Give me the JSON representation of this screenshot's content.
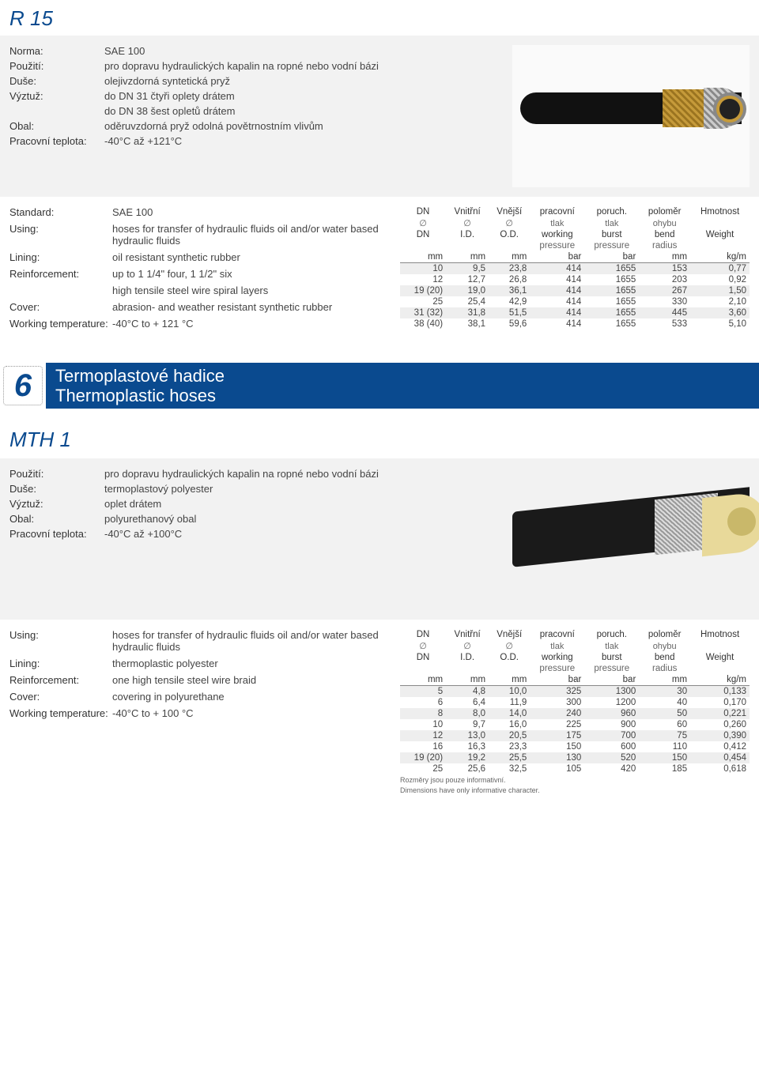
{
  "r15": {
    "title": "R 15",
    "spec_cz": [
      {
        "label": "Norma:",
        "value": "SAE 100"
      },
      {
        "label": "Použití:",
        "value": "pro dopravu hydraulických kapalin na ropné nebo vodní bázi"
      },
      {
        "label": "Duše:",
        "value": "olejivzdorná syntetická pryž"
      },
      {
        "label": "Výztuž:",
        "value": "do DN 31 čtyři oplety drátem"
      },
      {
        "label": "",
        "value": "do DN 38 šest opletů drátem"
      },
      {
        "label": "Obal:",
        "value": "oděruvzdorná pryž odolná povětrnostním vlivům"
      },
      {
        "label": "Pracovní teplota:",
        "value": "-40°C až +121°C"
      }
    ],
    "spec_en": [
      {
        "label": "Standard:",
        "value": "SAE 100"
      },
      {
        "label": "Using:",
        "value": "hoses for transfer of hydraulic fluids oil and/or water based hydraulic fluids"
      },
      {
        "label": "Lining:",
        "value": "oil resistant synthetic rubber"
      },
      {
        "label": "Reinforcement:",
        "value": "up to 1 1/4\" four, 1 1/2\" six"
      },
      {
        "label": "",
        "value": "high tensile steel wire spiral layers"
      },
      {
        "label": "Cover:",
        "value": "abrasion- and weather resistant synthetic rubber"
      },
      {
        "label": "Working temperature:",
        "value": "-40°C to + 121 °C"
      }
    ],
    "table": {
      "head_cz": [
        "DN",
        "Vnitřní",
        "Vnější",
        "pracovní",
        "poruch.",
        "poloměr",
        "Hmotnost"
      ],
      "head_sub1": [
        "∅",
        "∅",
        "∅",
        "tlak",
        "tlak",
        "ohybu",
        ""
      ],
      "head_en": [
        "DN",
        "I.D.",
        "O.D.",
        "working",
        "burst",
        "bend",
        "Weight"
      ],
      "head_sub2": [
        "",
        "",
        "",
        "pressure",
        "pressure",
        "radius",
        ""
      ],
      "units": [
        "mm",
        "mm",
        "mm",
        "bar",
        "bar",
        "mm",
        "kg/m"
      ],
      "rows": [
        [
          "10",
          "9,5",
          "23,8",
          "414",
          "1655",
          "153",
          "0,77"
        ],
        [
          "12",
          "12,7",
          "26,8",
          "414",
          "1655",
          "203",
          "0,92"
        ],
        [
          "19 (20)",
          "19,0",
          "36,1",
          "414",
          "1655",
          "267",
          "1,50"
        ],
        [
          "25",
          "25,4",
          "42,9",
          "414",
          "1655",
          "330",
          "2,10"
        ],
        [
          "31 (32)",
          "31,8",
          "51,5",
          "414",
          "1655",
          "445",
          "3,60"
        ],
        [
          "38 (40)",
          "38,1",
          "59,6",
          "414",
          "1655",
          "533",
          "5,10"
        ]
      ]
    }
  },
  "banner": {
    "number": "6",
    "line1": "Termoplastové hadice",
    "line2": "Thermoplastic hoses"
  },
  "mth1": {
    "title": "MTH 1",
    "spec_cz": [
      {
        "label": "Použití:",
        "value": "pro dopravu hydraulických kapalin na ropné nebo vodní bázi"
      },
      {
        "label": "Duše:",
        "value": "termoplastový polyester"
      },
      {
        "label": "Výztuž:",
        "value": "oplet drátem"
      },
      {
        "label": "Obal:",
        "value": "polyurethanový obal"
      },
      {
        "label": "Pracovní teplota:",
        "value": "-40°C až +100°C"
      }
    ],
    "spec_en": [
      {
        "label": "Using:",
        "value": "hoses for transfer of hydraulic fluids oil and/or water based hydraulic fluids"
      },
      {
        "label": "Lining:",
        "value": "thermoplastic polyester"
      },
      {
        "label": "Reinforcement:",
        "value": "one high tensile steel wire braid"
      },
      {
        "label": "Cover:",
        "value": "covering in polyurethane"
      },
      {
        "label": "Working temperature:",
        "value": "-40°C to + 100 °C"
      }
    ],
    "table": {
      "head_cz": [
        "DN",
        "Vnitřní",
        "Vnější",
        "pracovní",
        "poruch.",
        "poloměr",
        "Hmotnost"
      ],
      "head_sub1": [
        "∅",
        "∅",
        "∅",
        "tlak",
        "tlak",
        "ohybu",
        ""
      ],
      "head_en": [
        "DN",
        "I.D.",
        "O.D.",
        "working",
        "burst",
        "bend",
        "Weight"
      ],
      "head_sub2": [
        "",
        "",
        "",
        "pressure",
        "pressure",
        "radius",
        ""
      ],
      "units": [
        "mm",
        "mm",
        "mm",
        "bar",
        "bar",
        "mm",
        "kg/m"
      ],
      "rows": [
        [
          "5",
          "4,8",
          "10,0",
          "325",
          "1300",
          "30",
          "0,133"
        ],
        [
          "6",
          "6,4",
          "11,9",
          "300",
          "1200",
          "40",
          "0,170"
        ],
        [
          "8",
          "8,0",
          "14,0",
          "240",
          "960",
          "50",
          "0,221"
        ],
        [
          "10",
          "9,7",
          "16,0",
          "225",
          "900",
          "60",
          "0,260"
        ],
        [
          "12",
          "13,0",
          "20,5",
          "175",
          "700",
          "75",
          "0,390"
        ],
        [
          "16",
          "16,3",
          "23,3",
          "150",
          "600",
          "110",
          "0,412"
        ],
        [
          "19 (20)",
          "19,2",
          "25,5",
          "130",
          "520",
          "150",
          "0,454"
        ],
        [
          "25",
          "25,6",
          "32,5",
          "105",
          "420",
          "185",
          "0,618"
        ]
      ],
      "footnote_cz": "Rozměry jsou pouze informativní.",
      "footnote_en": "Dimensions have only informative character."
    }
  }
}
